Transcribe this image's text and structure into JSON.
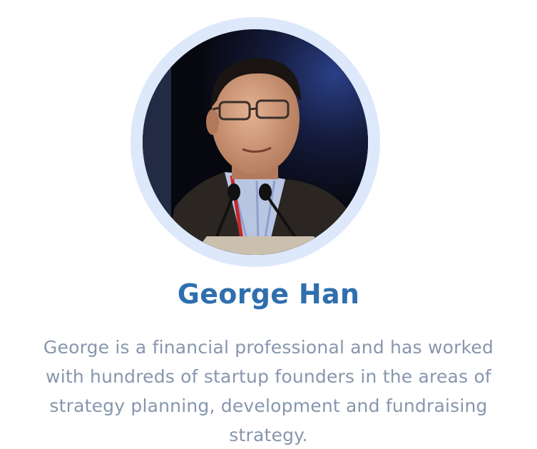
{
  "colors": {
    "name": "#2f6fad",
    "bio": "#8796ae",
    "ring": "#dde8fb"
  },
  "profile": {
    "photo_icon": "person-portrait-photo",
    "name": "George Han",
    "bio_lines": [
      "George is a financial professional and has worked",
      "with hundreds of startup founders in the areas of",
      "strategy planning, development and fundraising",
      "strategy."
    ]
  }
}
